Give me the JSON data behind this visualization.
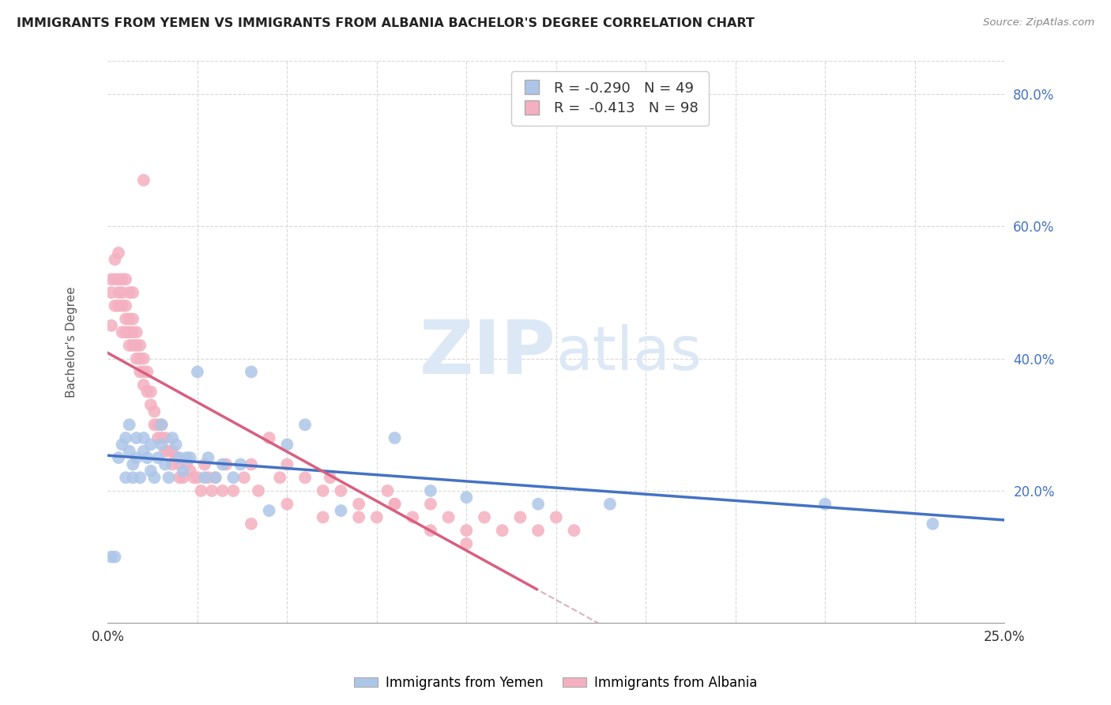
{
  "title": "IMMIGRANTS FROM YEMEN VS IMMIGRANTS FROM ALBANIA BACHELOR'S DEGREE CORRELATION CHART",
  "source": "Source: ZipAtlas.com",
  "ylabel": "Bachelor's Degree",
  "y_tick_labels": [
    "20.0%",
    "40.0%",
    "60.0%",
    "80.0%"
  ],
  "y_tick_vals": [
    0.2,
    0.4,
    0.6,
    0.8
  ],
  "color_yemen": "#adc6e8",
  "color_albania": "#f4b0c0",
  "color_line_yemen": "#4472c4",
  "color_line_albania": "#d95f7f",
  "color_dashed": "#d0a0b0",
  "watermark_zip": "ZIP",
  "watermark_atlas": "atlas",
  "watermark_color": "#dce8f5",
  "yemen_x": [
    0.001,
    0.002,
    0.003,
    0.004,
    0.005,
    0.005,
    0.006,
    0.006,
    0.007,
    0.007,
    0.008,
    0.008,
    0.009,
    0.01,
    0.01,
    0.011,
    0.012,
    0.012,
    0.013,
    0.014,
    0.015,
    0.015,
    0.016,
    0.017,
    0.018,
    0.019,
    0.02,
    0.021,
    0.022,
    0.023,
    0.025,
    0.027,
    0.028,
    0.03,
    0.032,
    0.035,
    0.037,
    0.04,
    0.045,
    0.05,
    0.055,
    0.065,
    0.08,
    0.09,
    0.1,
    0.12,
    0.14,
    0.2,
    0.23
  ],
  "yemen_y": [
    0.1,
    0.1,
    0.25,
    0.27,
    0.22,
    0.28,
    0.3,
    0.26,
    0.24,
    0.22,
    0.28,
    0.25,
    0.22,
    0.26,
    0.28,
    0.25,
    0.27,
    0.23,
    0.22,
    0.25,
    0.27,
    0.3,
    0.24,
    0.22,
    0.28,
    0.27,
    0.25,
    0.23,
    0.25,
    0.25,
    0.38,
    0.22,
    0.25,
    0.22,
    0.24,
    0.22,
    0.24,
    0.38,
    0.17,
    0.27,
    0.3,
    0.17,
    0.28,
    0.2,
    0.19,
    0.18,
    0.18,
    0.18,
    0.15
  ],
  "albania_x": [
    0.001,
    0.001,
    0.001,
    0.002,
    0.002,
    0.002,
    0.003,
    0.003,
    0.003,
    0.003,
    0.004,
    0.004,
    0.004,
    0.004,
    0.005,
    0.005,
    0.005,
    0.005,
    0.006,
    0.006,
    0.006,
    0.006,
    0.007,
    0.007,
    0.007,
    0.007,
    0.008,
    0.008,
    0.008,
    0.009,
    0.009,
    0.009,
    0.01,
    0.01,
    0.01,
    0.011,
    0.011,
    0.012,
    0.012,
    0.013,
    0.013,
    0.014,
    0.014,
    0.015,
    0.015,
    0.016,
    0.016,
    0.017,
    0.018,
    0.018,
    0.019,
    0.02,
    0.02,
    0.021,
    0.022,
    0.023,
    0.024,
    0.025,
    0.026,
    0.027,
    0.028,
    0.029,
    0.03,
    0.032,
    0.033,
    0.035,
    0.038,
    0.04,
    0.042,
    0.045,
    0.048,
    0.05,
    0.055,
    0.06,
    0.062,
    0.065,
    0.07,
    0.075,
    0.078,
    0.08,
    0.085,
    0.09,
    0.095,
    0.1,
    0.105,
    0.11,
    0.115,
    0.12,
    0.125,
    0.13,
    0.04,
    0.05,
    0.06,
    0.07,
    0.08,
    0.09,
    0.1,
    0.01
  ],
  "albania_y": [
    0.45,
    0.5,
    0.52,
    0.48,
    0.52,
    0.55,
    0.48,
    0.5,
    0.52,
    0.56,
    0.44,
    0.48,
    0.5,
    0.52,
    0.44,
    0.46,
    0.48,
    0.52,
    0.42,
    0.44,
    0.46,
    0.5,
    0.42,
    0.44,
    0.46,
    0.5,
    0.4,
    0.42,
    0.44,
    0.38,
    0.4,
    0.42,
    0.36,
    0.38,
    0.4,
    0.35,
    0.38,
    0.33,
    0.35,
    0.3,
    0.32,
    0.28,
    0.3,
    0.28,
    0.3,
    0.26,
    0.28,
    0.26,
    0.24,
    0.26,
    0.25,
    0.22,
    0.24,
    0.22,
    0.24,
    0.23,
    0.22,
    0.22,
    0.2,
    0.24,
    0.22,
    0.2,
    0.22,
    0.2,
    0.24,
    0.2,
    0.22,
    0.24,
    0.2,
    0.28,
    0.22,
    0.24,
    0.22,
    0.2,
    0.22,
    0.2,
    0.18,
    0.16,
    0.2,
    0.18,
    0.16,
    0.18,
    0.16,
    0.14,
    0.16,
    0.14,
    0.16,
    0.14,
    0.16,
    0.14,
    0.15,
    0.18,
    0.16,
    0.16,
    0.18,
    0.14,
    0.12,
    0.67
  ],
  "xlim": [
    0.0,
    0.25
  ],
  "ylim": [
    0.0,
    0.85
  ],
  "background_color": "#ffffff",
  "grid_color": "#d8d8d8"
}
